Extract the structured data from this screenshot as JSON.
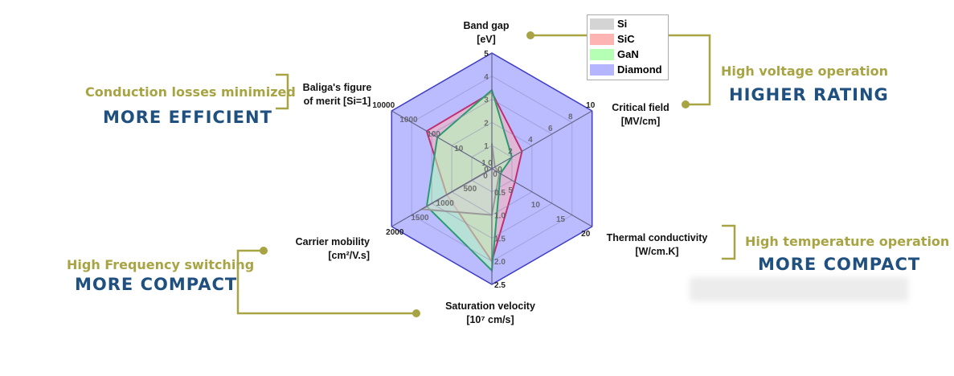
{
  "chart_data": {
    "type": "radar",
    "axes": [
      {
        "label": "Band gap",
        "unit": "[eV]",
        "ticks": [
          "0",
          "1",
          "2",
          "3",
          "4",
          "5"
        ],
        "range": [
          0,
          5
        ],
        "scale": "linear"
      },
      {
        "label": "Critical field",
        "unit": "[MV/cm]",
        "ticks": [
          "0",
          "2",
          "4",
          "6",
          "8",
          "10"
        ],
        "range": [
          0,
          10
        ],
        "scale": "linear"
      },
      {
        "label": "Thermal conductivity",
        "unit": "[W/cm.K]",
        "ticks": [
          "0",
          "5",
          "10",
          "15",
          "20"
        ],
        "range": [
          0,
          20
        ],
        "scale": "linear"
      },
      {
        "label": "Saturation velocity",
        "unit": "[10⁷ cm/s]",
        "ticks": [
          "0",
          "0.5",
          "1.0",
          "1.5",
          "2.0",
          "2.5"
        ],
        "range": [
          0,
          2.5
        ],
        "scale": "linear"
      },
      {
        "label": "Carrier mobility",
        "unit": "[cm²/V.s]",
        "ticks": [
          "0",
          "500",
          "1000",
          "1500",
          "2000"
        ],
        "range": [
          0,
          2000
        ],
        "scale": "linear"
      },
      {
        "label": "Baliga's figure",
        "unit": "of merit [Si=1]",
        "ticks": [
          "1",
          "10",
          "100",
          "1000",
          "10000"
        ],
        "range": [
          1,
          10000
        ],
        "scale": "log"
      }
    ],
    "series": [
      {
        "name": "Diamond",
        "values": [
          5.5,
          10,
          20,
          2.5,
          2000,
          10000
        ],
        "fill": "#b4b4ff",
        "stroke": "#3c3cc8"
      },
      {
        "name": "SiC",
        "values": [
          3.3,
          3,
          4.6,
          2.0,
          900,
          400
        ],
        "fill": "#ffb4b4",
        "stroke": "#c03070"
      },
      {
        "name": "GaN",
        "values": [
          3.4,
          2,
          1.7,
          2.2,
          1300,
          150
        ],
        "fill": "#b4ffb4",
        "stroke": "#2a9a70"
      },
      {
        "name": "Si",
        "values": [
          1.1,
          0.3,
          1.5,
          1.0,
          1400,
          1
        ],
        "fill": "#d4d4d4",
        "stroke": "#999999"
      }
    ],
    "legend": "top-right",
    "grid": true
  },
  "legend_items": [
    "Si",
    "SiC",
    "GaN",
    "Diamond"
  ],
  "legend_colors": [
    "#d4d4d4",
    "#ffb4b4",
    "#b4ffb4",
    "#b4b4ff"
  ],
  "annotations": {
    "baliga": {
      "caption": "Conduction losses minimized",
      "headline": "MORE EFFICIENT"
    },
    "field": {
      "caption": "High voltage operation",
      "headline": "HIGHER RATING"
    },
    "thermal": {
      "caption": "High temperature operation",
      "headline": "MORE COMPACT"
    },
    "mobility": {
      "caption": "High Frequency switching",
      "headline": "MORE COMPACT"
    }
  },
  "colors": {
    "olive": "#a8a444",
    "blue": "#1f5080"
  }
}
